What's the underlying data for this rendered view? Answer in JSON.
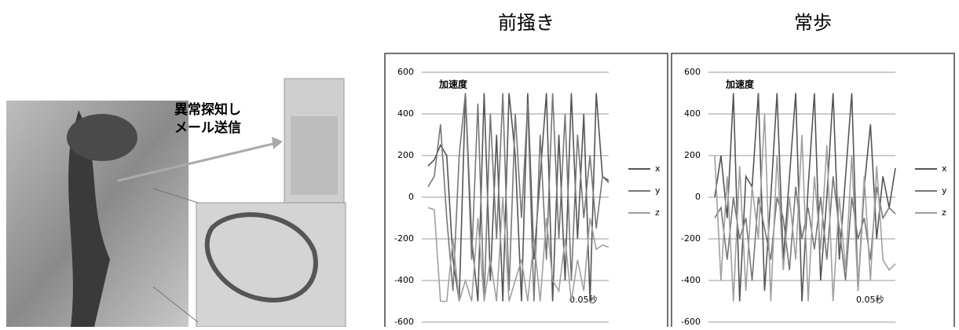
{
  "photo_caption": {
    "lines": [
      "異常探知し",
      "メール送信"
    ]
  },
  "chart_data": [
    {
      "type": "line",
      "title": "前掻き",
      "annotation": "加速度",
      "xlabel": "0.05秒",
      "ylim": [
        -600,
        600
      ],
      "yticks": [
        -600,
        -400,
        -200,
        0,
        200,
        400,
        600
      ],
      "grid": true,
      "legend": "right",
      "series": [
        {
          "name": "x",
          "color": "#555555",
          "values": [
            150,
            180,
            250,
            200,
            -300,
            -500,
            500,
            -200,
            -500,
            500,
            -400,
            300,
            -500,
            500,
            200,
            -500,
            500,
            -300,
            100,
            500,
            -500,
            300,
            -400,
            500,
            -200,
            400,
            -500,
            500,
            100,
            80
          ]
        },
        {
          "name": "y",
          "color": "#777777",
          "values": [
            50,
            100,
            350,
            -100,
            -450,
            200,
            500,
            -300,
            450,
            -500,
            400,
            -200,
            500,
            -450,
            400,
            -100,
            450,
            -500,
            300,
            -300,
            500,
            -200,
            400,
            -400,
            300,
            -100,
            200,
            -150,
            100,
            70
          ]
        },
        {
          "name": "z",
          "color": "#a0a0a0",
          "values": [
            -50,
            -60,
            -500,
            -500,
            -200,
            -500,
            -400,
            -500,
            -100,
            -500,
            -300,
            -500,
            0,
            -500,
            -400,
            -300,
            -500,
            -200,
            -500,
            -100,
            -400,
            -450,
            -200,
            -500,
            -300,
            -450,
            -100,
            -250,
            -230,
            -240
          ]
        }
      ]
    },
    {
      "type": "line",
      "title": "常歩",
      "annotation": "加速度",
      "xlabel": "0.05秒",
      "ylim": [
        -600,
        600
      ],
      "yticks": [
        -600,
        -400,
        -200,
        0,
        200,
        400,
        600
      ],
      "grid": true,
      "legend": "right",
      "series": [
        {
          "name": "x",
          "color": "#555555",
          "values": [
            0,
            200,
            -100,
            500,
            -500,
            100,
            50,
            500,
            -450,
            0,
            500,
            -300,
            100,
            500,
            -500,
            50,
            500,
            -400,
            0,
            500,
            -300,
            100,
            500,
            -450,
            50,
            350,
            -200,
            100,
            -50,
            140
          ]
        },
        {
          "name": "y",
          "color": "#777777",
          "values": [
            -100,
            -50,
            -300,
            0,
            -200,
            -100,
            -400,
            0,
            -150,
            -300,
            0,
            -100,
            -350,
            50,
            -200,
            -50,
            -250,
            0,
            -300,
            100,
            -150,
            -400,
            0,
            -200,
            -100,
            -300,
            50,
            -100,
            -50,
            -80
          ]
        },
        {
          "name": "z",
          "color": "#a0a0a0",
          "values": [
            200,
            -400,
            100,
            -500,
            150,
            -450,
            50,
            -200,
            400,
            -500,
            200,
            -350,
            0,
            -300,
            300,
            -500,
            100,
            -250,
            250,
            -500,
            0,
            -350,
            200,
            -450,
            100,
            -400,
            150,
            -300,
            -350,
            -320
          ]
        }
      ]
    }
  ]
}
